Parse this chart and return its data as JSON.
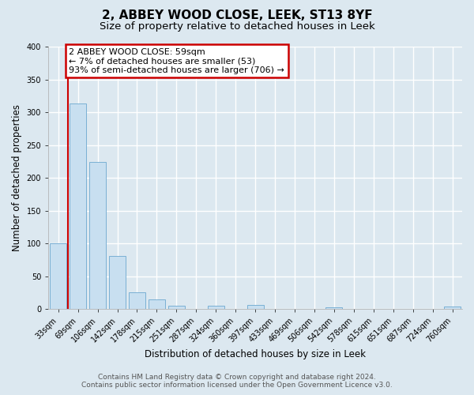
{
  "title": "2, ABBEY WOOD CLOSE, LEEK, ST13 8YF",
  "subtitle": "Size of property relative to detached houses in Leek",
  "xlabel": "Distribution of detached houses by size in Leek",
  "ylabel": "Number of detached properties",
  "bin_labels": [
    "33sqm",
    "69sqm",
    "106sqm",
    "142sqm",
    "178sqm",
    "215sqm",
    "251sqm",
    "287sqm",
    "324sqm",
    "360sqm",
    "397sqm",
    "433sqm",
    "469sqm",
    "506sqm",
    "542sqm",
    "578sqm",
    "615sqm",
    "651sqm",
    "687sqm",
    "724sqm",
    "760sqm"
  ],
  "bar_heights": [
    100,
    313,
    224,
    81,
    26,
    14,
    5,
    0,
    5,
    0,
    6,
    0,
    0,
    0,
    2,
    0,
    0,
    0,
    0,
    0,
    4
  ],
  "bar_color": "#c8dff0",
  "bar_edge_color": "#7ab0d4",
  "marker_line_color": "#cc0000",
  "annotation_title": "2 ABBEY WOOD CLOSE: 59sqm",
  "annotation_line1": "← 7% of detached houses are smaller (53)",
  "annotation_line2": "93% of semi-detached houses are larger (706) →",
  "annotation_box_color": "#ffffff",
  "annotation_box_edge": "#cc0000",
  "ylim": [
    0,
    400
  ],
  "yticks": [
    0,
    50,
    100,
    150,
    200,
    250,
    300,
    350,
    400
  ],
  "footer_line1": "Contains HM Land Registry data © Crown copyright and database right 2024.",
  "footer_line2": "Contains public sector information licensed under the Open Government Licence v3.0.",
  "bg_color": "#dce8f0",
  "plot_bg_color": "#dce8f0",
  "grid_color": "#ffffff",
  "title_fontsize": 11,
  "subtitle_fontsize": 9.5,
  "axis_label_fontsize": 8.5,
  "tick_fontsize": 7,
  "footer_fontsize": 6.5,
  "annotation_fontsize": 8
}
